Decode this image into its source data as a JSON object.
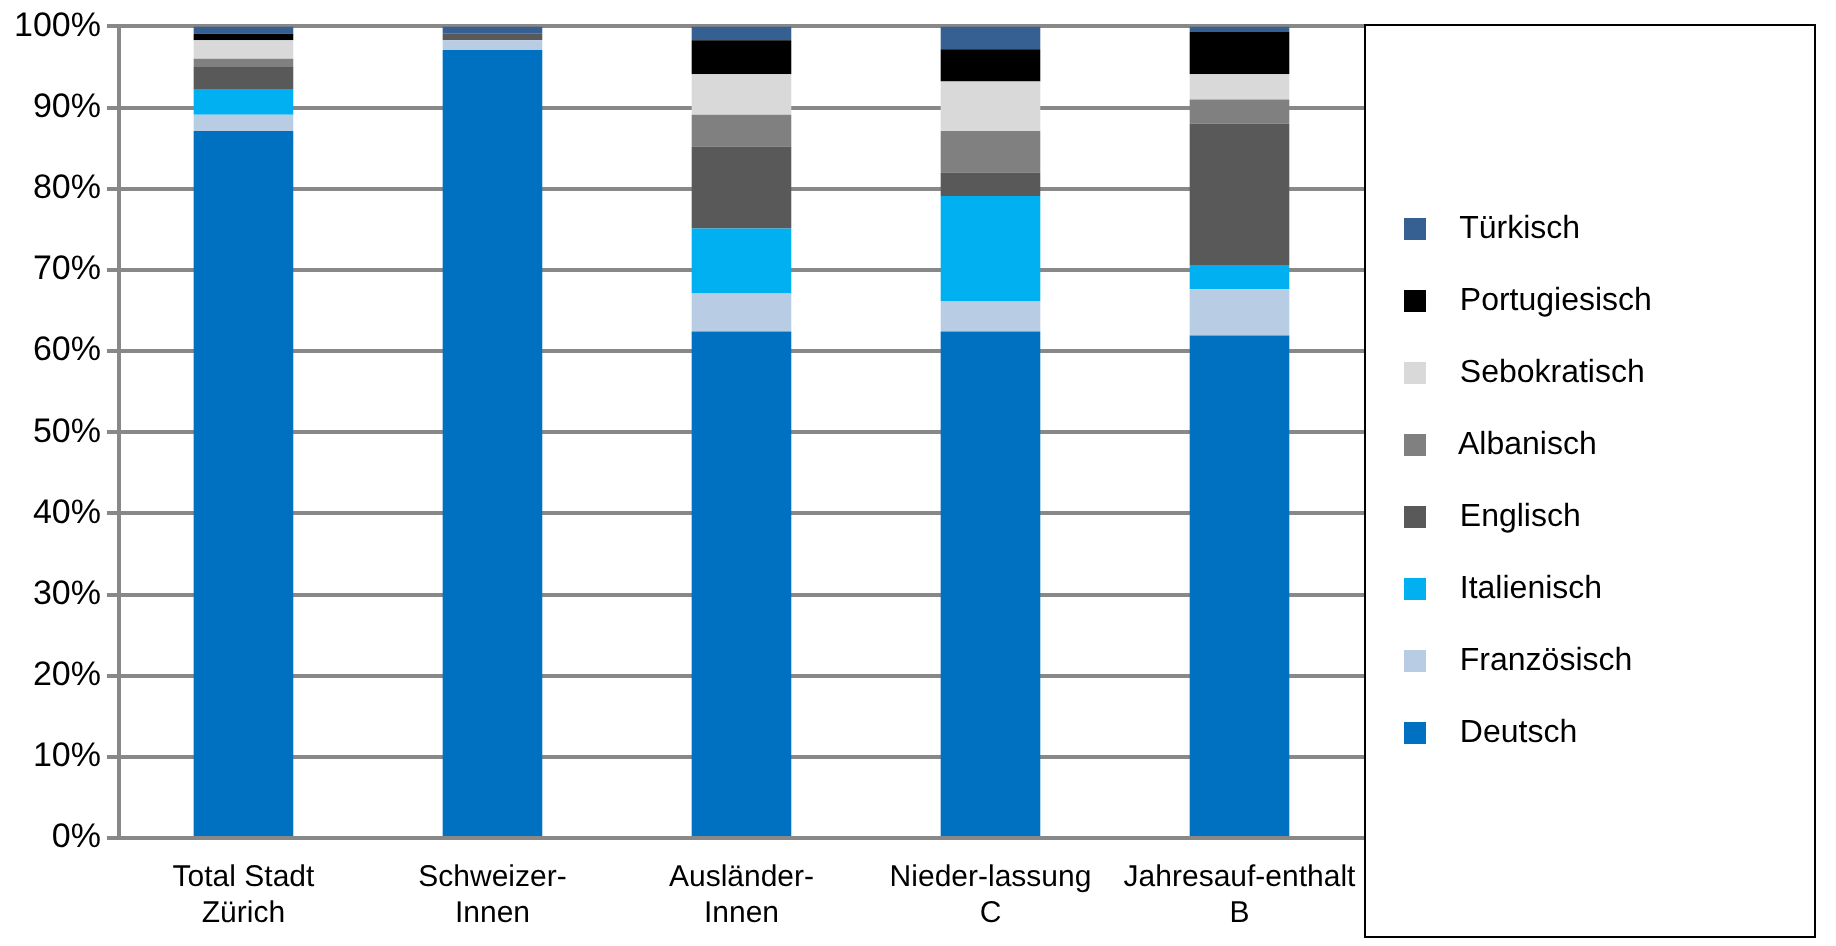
{
  "chart_data": {
    "type": "bar",
    "stacked": true,
    "categories": [
      "Total Stadt Zürich",
      "Schweizer-Innen",
      "Ausländer-Innen",
      "Nieder-lassung C",
      "Jahresauf-enthalt B"
    ],
    "series": [
      {
        "name": "Deutsch",
        "color": "#0070c0",
        "values": [
          87.1,
          97.1,
          62.4,
          62.4,
          61.9
        ]
      },
      {
        "name": "Französisch",
        "color": "#b8cce4",
        "values": [
          2.0,
          1.2,
          4.7,
          3.7,
          5.7
        ]
      },
      {
        "name": "Italienisch",
        "color": "#00b0f0",
        "values": [
          3.1,
          0,
          8.0,
          13.0,
          3.0
        ]
      },
      {
        "name": "Englisch",
        "color": "#595959",
        "values": [
          2.8,
          0.8,
          10.1,
          2.9,
          17.4
        ]
      },
      {
        "name": "Albanisch",
        "color": "#808080",
        "values": [
          1.0,
          0,
          3.9,
          5.1,
          3.0
        ]
      },
      {
        "name": "Sebokratisch",
        "color": "#d9d9d9",
        "values": [
          2.3,
          0,
          5.0,
          6.1,
          3.1
        ]
      },
      {
        "name": "Portugiesisch",
        "color": "#000000",
        "values": [
          0.8,
          0,
          4.2,
          4.0,
          5.2
        ]
      },
      {
        "name": "Türkisch",
        "color": "#366092",
        "values": [
          0.9,
          0.9,
          1.7,
          2.8,
          0.7
        ]
      }
    ],
    "ylim": [
      0,
      100
    ],
    "yticks": [
      {
        "value": 0,
        "label": "0%"
      },
      {
        "value": 10,
        "label": "10%"
      },
      {
        "value": 20,
        "label": "20%"
      },
      {
        "value": 30,
        "label": "30%"
      },
      {
        "value": 40,
        "label": "40%"
      },
      {
        "value": 50,
        "label": "50%"
      },
      {
        "value": 60,
        "label": "60%"
      },
      {
        "value": 70,
        "label": "70%"
      },
      {
        "value": 80,
        "label": "80%"
      },
      {
        "value": 90,
        "label": "90%"
      },
      {
        "value": 100,
        "label": "100%"
      }
    ],
    "grid": "y",
    "legend": "right"
  }
}
